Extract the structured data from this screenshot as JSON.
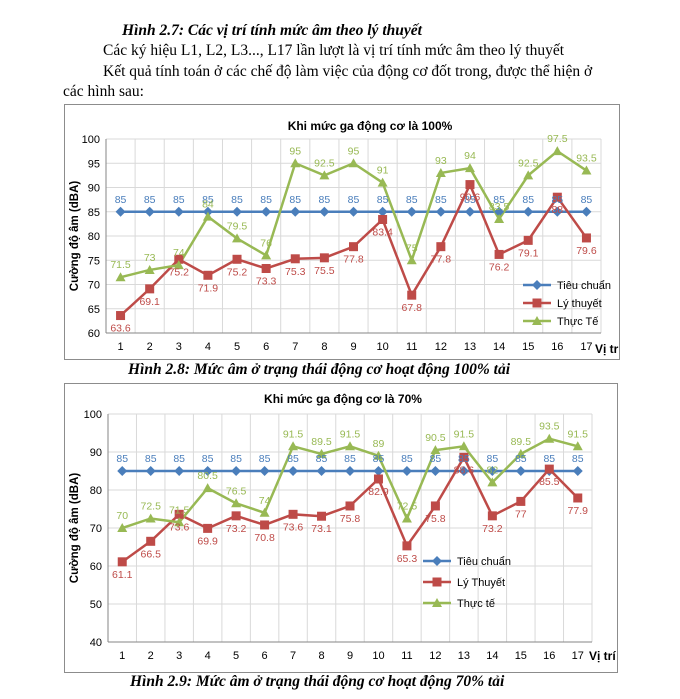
{
  "header": {
    "fig1_caption": "Hình 2.7: Các vị trí tính mức âm theo lý thuyết",
    "line1": "Các ký hiệu L1, L2, L3..., L17 lần lượt là vị trí tính mức âm theo lý thuyết",
    "line2": "Kết quả tính toán ở các chế độ làm việc của động cơ đốt trong, được thể hiện ở",
    "line3": "các hình sau:"
  },
  "captions": {
    "fig2": "Hình 2.8: Mức âm ở trạng thái động cơ hoạt động 100% tải",
    "fig3": "Hình 2.9: Mức âm ở trạng thái động cơ hoạt động 70% tải"
  },
  "colors": {
    "standard": "#4a7ebb",
    "theory": "#be4b48",
    "actual": "#98b954",
    "grid": "#d9d9d9",
    "axis": "#868686"
  },
  "chart_data": [
    {
      "type": "line",
      "title": "Khi mức ga động cơ là 100%",
      "xlabel": "Vị trí đo",
      "ylabel": "Cường độ âm (dBA)",
      "x": [
        1,
        2,
        3,
        4,
        5,
        6,
        7,
        8,
        9,
        10,
        11,
        12,
        13,
        14,
        15,
        16,
        17
      ],
      "ylim": [
        60,
        100
      ],
      "yticks": [
        60,
        65,
        70,
        75,
        80,
        85,
        90,
        95,
        100
      ],
      "grid": true,
      "legend_position": "right",
      "series": [
        {
          "name": "Tiêu chuẩn",
          "values": [
            85,
            85,
            85,
            85,
            85,
            85,
            85,
            85,
            85,
            85,
            85,
            85,
            85,
            85,
            85,
            85,
            85
          ]
        },
        {
          "name": "Lý thuyết",
          "values": [
            63.6,
            69.1,
            75.2,
            71.9,
            75.2,
            73.3,
            75.3,
            75.5,
            77.8,
            83.4,
            67.8,
            77.8,
            90.6,
            76.2,
            79.1,
            88,
            79.6
          ]
        },
        {
          "name": "Thực Tế",
          "values": [
            71.5,
            73,
            74,
            84,
            79.5,
            76,
            95,
            92.5,
            95,
            91,
            75,
            93,
            94,
            83.5,
            92.5,
            97.5,
            93.5
          ]
        }
      ]
    },
    {
      "type": "line",
      "title": "Khi mức ga động cơ là 70%",
      "xlabel": "Vị trí đo",
      "ylabel": "Cường độ âm (dBA)",
      "x": [
        1,
        2,
        3,
        4,
        5,
        6,
        7,
        8,
        9,
        10,
        11,
        12,
        13,
        14,
        15,
        16,
        17
      ],
      "ylim": [
        40,
        100
      ],
      "yticks": [
        40,
        50,
        60,
        70,
        80,
        90,
        100
      ],
      "grid": true,
      "legend_position": "right",
      "series": [
        {
          "name": "Tiêu chuẩn",
          "values": [
            85,
            85,
            85,
            85,
            85,
            85,
            85,
            85,
            85,
            85,
            85,
            85,
            85,
            85,
            85,
            85,
            85
          ]
        },
        {
          "name": "Lý Thuyết",
          "values": [
            61.1,
            66.5,
            73.6,
            69.9,
            73.2,
            70.8,
            73.6,
            73.1,
            75.8,
            82.9,
            65.3,
            75.8,
            88.6,
            73.2,
            77,
            85.5,
            77.9
          ]
        },
        {
          "name": "Thực tế",
          "values": [
            70,
            72.5,
            71.5,
            80.5,
            76.5,
            74,
            91.5,
            89.5,
            91.5,
            89,
            72.5,
            90.5,
            91.5,
            82,
            89.5,
            93.5,
            91.5
          ]
        }
      ]
    }
  ]
}
